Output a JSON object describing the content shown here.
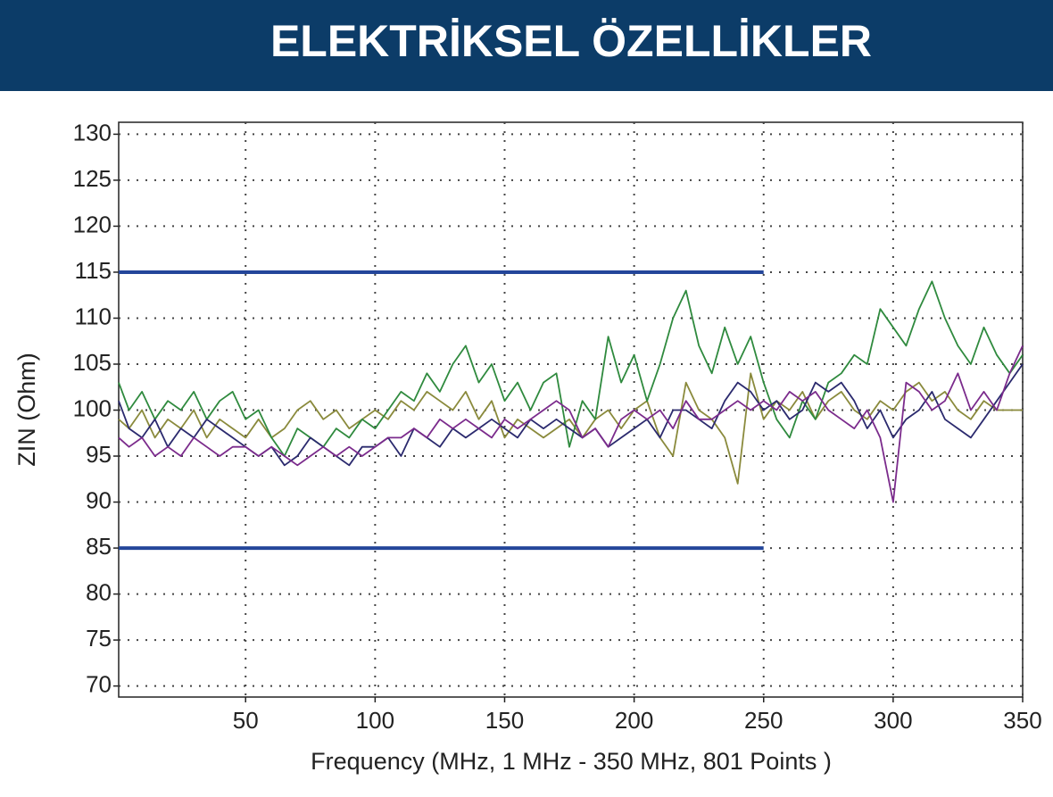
{
  "chart_data": {
    "type": "line",
    "title": "ELEKTRİKSEL ÖZELLİKLER",
    "x_label": "Frequency (MHz, 1 MHz - 350 MHz, 801 Points )",
    "y_label": "ZIN (Ohm)",
    "xlim": [
      1,
      350
    ],
    "ylim": [
      68.8,
      131.3
    ],
    "xticks": [
      50,
      100,
      150,
      200,
      250,
      300,
      350
    ],
    "yticks": [
      70,
      75,
      80,
      85,
      90,
      95,
      100,
      105,
      110,
      115,
      120,
      125,
      130
    ],
    "grid": true,
    "x": [
      1,
      5,
      10,
      15,
      20,
      25,
      30,
      35,
      40,
      45,
      50,
      55,
      60,
      65,
      70,
      75,
      80,
      85,
      90,
      95,
      100,
      105,
      110,
      115,
      120,
      125,
      130,
      135,
      140,
      145,
      150,
      155,
      160,
      165,
      170,
      175,
      180,
      185,
      190,
      195,
      200,
      205,
      210,
      215,
      220,
      225,
      230,
      235,
      240,
      245,
      250,
      255,
      260,
      265,
      270,
      275,
      280,
      285,
      290,
      295,
      300,
      305,
      310,
      315,
      320,
      325,
      330,
      335,
      340,
      345,
      350
    ],
    "series": [
      {
        "color": "#8a8a3c",
        "values": [
          99,
          98,
          100,
          97,
          99,
          98,
          100,
          97,
          99,
          98,
          97,
          99,
          97,
          98,
          100,
          101,
          99,
          100,
          98,
          99,
          100,
          99,
          101,
          100,
          102,
          101,
          100,
          102,
          99,
          101,
          97,
          99,
          98,
          97,
          98,
          99,
          97,
          99,
          100,
          98,
          100,
          101,
          97,
          95,
          103,
          100,
          99,
          97,
          92,
          104,
          99,
          101,
          100,
          102,
          99,
          101,
          102,
          100,
          99,
          101,
          100,
          102,
          103,
          101,
          102,
          100,
          99,
          101,
          100,
          100,
          100
        ]
      },
      {
        "color": "#2f8a3e",
        "values": [
          103,
          100,
          102,
          99,
          101,
          100,
          102,
          99,
          101,
          102,
          99,
          100,
          97,
          95,
          98,
          97,
          96,
          98,
          97,
          99,
          98,
          100,
          102,
          101,
          104,
          102,
          105,
          107,
          103,
          105,
          101,
          103,
          100,
          103,
          104,
          96,
          101,
          99,
          108,
          103,
          106,
          101,
          105,
          110,
          113,
          107,
          104,
          109,
          105,
          108,
          103,
          99,
          97,
          101,
          99,
          103,
          104,
          106,
          105,
          111,
          109,
          107,
          111,
          114,
          110,
          107,
          105,
          109,
          106,
          104,
          106
        ]
      },
      {
        "color": "#2b2a6e",
        "values": [
          101,
          98,
          97,
          99,
          96,
          98,
          97,
          99,
          98,
          97,
          96,
          95,
          96,
          94,
          95,
          97,
          96,
          95,
          94,
          96,
          96,
          97,
          95,
          98,
          97,
          96,
          98,
          97,
          98,
          99,
          98,
          97,
          99,
          98,
          99,
          98,
          97,
          98,
          96,
          97,
          98,
          99,
          97,
          100,
          100,
          99,
          98,
          101,
          103,
          102,
          100,
          101,
          99,
          100,
          103,
          102,
          103,
          101,
          98,
          100,
          97,
          99,
          100,
          102,
          99,
          98,
          97,
          99,
          101,
          103,
          105
        ]
      },
      {
        "color": "#7b2b8c",
        "values": [
          97,
          96,
          97,
          95,
          96,
          95,
          97,
          96,
          95,
          96,
          96,
          95,
          96,
          95,
          94,
          95,
          96,
          95,
          96,
          95,
          96,
          97,
          97,
          98,
          97,
          99,
          98,
          99,
          98,
          97,
          99,
          98,
          99,
          100,
          101,
          100,
          97,
          98,
          96,
          99,
          100,
          99,
          100,
          98,
          101,
          99,
          99,
          100,
          101,
          100,
          101,
          100,
          102,
          101,
          102,
          100,
          99,
          98,
          100,
          97,
          90,
          103,
          102,
          100,
          101,
          104,
          100,
          102,
          100,
          104,
          107
        ]
      },
      {
        "color": "#24469a",
        "width": 4,
        "x": [
          1,
          250
        ],
        "values": [
          115,
          115
        ]
      },
      {
        "color": "#24469a",
        "width": 4,
        "x": [
          1,
          250
        ],
        "values": [
          85,
          85
        ]
      }
    ]
  }
}
